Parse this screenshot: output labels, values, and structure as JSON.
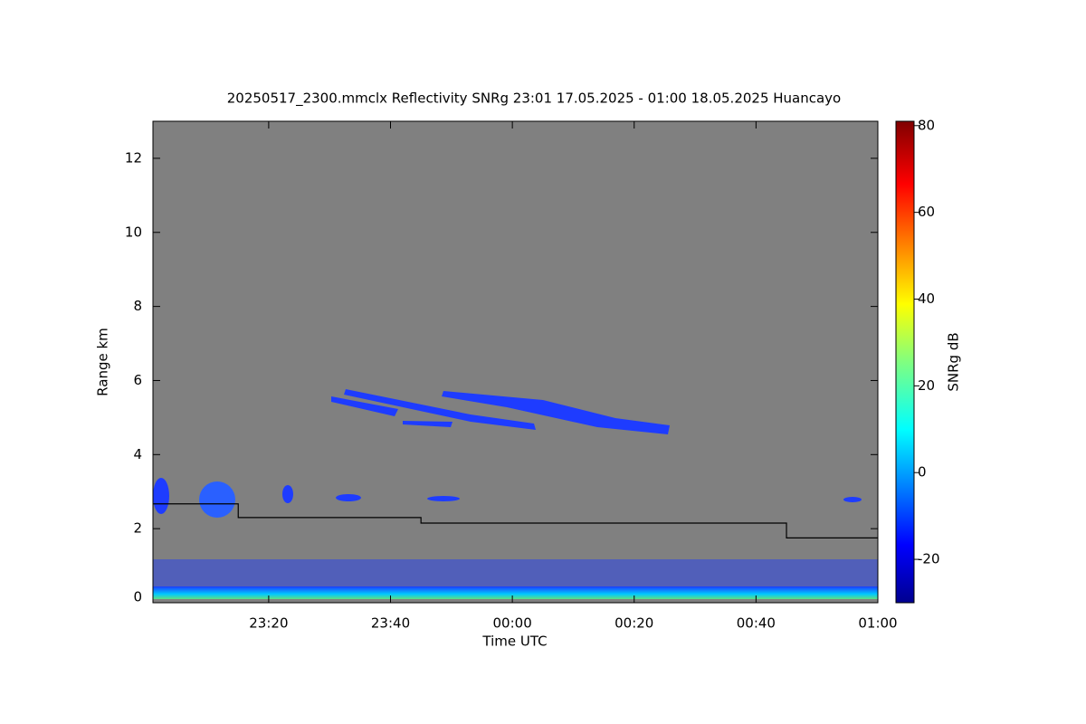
{
  "chart_data": {
    "type": "line",
    "title": "20250517_2300.mmclx Reflectivity SNRg   23:01 17.05.2025 - 01:00 18.05.2025 Huancayo",
    "x_label": "Time UTC",
    "y_label": "Range km",
    "x": [
      "23:01",
      "23:15",
      "23:15",
      "23:45",
      "23:45",
      "00:45",
      "00:45",
      "01:00"
    ],
    "values": [
      2.67,
      2.67,
      2.3,
      2.3,
      2.15,
      2.15,
      1.75,
      1.75
    ],
    "color": "#000000",
    "xlim": [
      "23:01",
      "01:00"
    ],
    "xticks": [
      "23:20",
      "23:40",
      "00:00",
      "00:20",
      "00:40",
      "01:00"
    ],
    "ylim": [
      0,
      13
    ],
    "yticks": [
      0,
      2,
      4,
      6,
      8,
      10,
      12
    ],
    "colorbar": {
      "label": "SNRg dB",
      "lim": [
        -30,
        81
      ],
      "ticks": [
        -20,
        0,
        20,
        40,
        60,
        80
      ]
    }
  }
}
